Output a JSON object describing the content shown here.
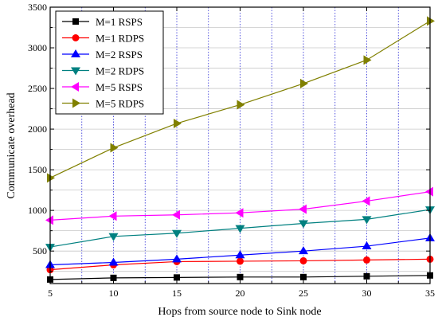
{
  "chart_data": {
    "type": "line",
    "title": "",
    "xlabel": "Hops from source node to Sink node",
    "ylabel": "Communicate overhead",
    "x": [
      5,
      10,
      15,
      20,
      25,
      30,
      35
    ],
    "xlim": [
      5,
      35
    ],
    "ylim": [
      100,
      3500
    ],
    "xticks": [
      5,
      10,
      15,
      20,
      25,
      30,
      35
    ],
    "yticks": [
      500,
      1000,
      1500,
      2000,
      2500,
      3000,
      3500
    ],
    "grid": true,
    "legend_position": "top-left",
    "series": [
      {
        "name": "M=1 RSPS",
        "color": "#000000",
        "marker": "square",
        "values": [
          150,
          170,
          175,
          180,
          180,
          190,
          200
        ]
      },
      {
        "name": "M=1 RDPS",
        "color": "#ff0000",
        "marker": "circle",
        "values": [
          270,
          330,
          370,
          375,
          380,
          390,
          400
        ]
      },
      {
        "name": "M=2 RSPS",
        "color": "#0000ff",
        "marker": "triangle-up",
        "values": [
          330,
          360,
          400,
          450,
          500,
          560,
          660
        ]
      },
      {
        "name": "M=2 RDPS",
        "color": "#008080",
        "marker": "triangle-down",
        "values": [
          550,
          680,
          720,
          780,
          840,
          890,
          1010
        ]
      },
      {
        "name": "M=5 RSPS",
        "color": "#ff00ff",
        "marker": "triangle-left",
        "values": [
          880,
          930,
          945,
          970,
          1015,
          1115,
          1230
        ]
      },
      {
        "name": "M=5 RDPS",
        "color": "#808000",
        "marker": "triangle-right",
        "values": [
          1400,
          1770,
          2070,
          2300,
          2560,
          2850,
          3330
        ]
      }
    ]
  }
}
